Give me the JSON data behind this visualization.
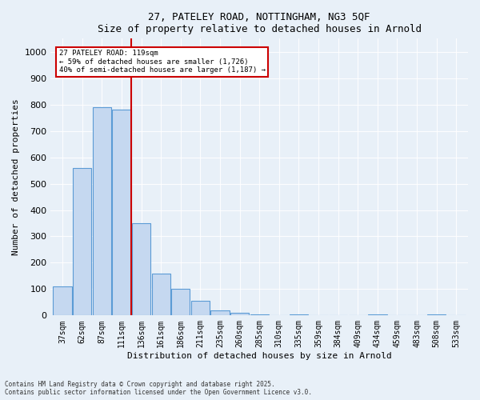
{
  "title1": "27, PATELEY ROAD, NOTTINGHAM, NG3 5QF",
  "title2": "Size of property relative to detached houses in Arnold",
  "xlabel": "Distribution of detached houses by size in Arnold",
  "ylabel": "Number of detached properties",
  "categories": [
    "37sqm",
    "62sqm",
    "87sqm",
    "111sqm",
    "136sqm",
    "161sqm",
    "186sqm",
    "211sqm",
    "235sqm",
    "260sqm",
    "285sqm",
    "310sqm",
    "335sqm",
    "359sqm",
    "384sqm",
    "409sqm",
    "434sqm",
    "459sqm",
    "483sqm",
    "508sqm",
    "533sqm"
  ],
  "values": [
    110,
    560,
    790,
    780,
    350,
    160,
    100,
    55,
    20,
    10,
    5,
    0,
    5,
    0,
    0,
    0,
    5,
    0,
    0,
    5,
    0
  ],
  "bar_color": "#c5d8f0",
  "bar_edge_color": "#5b9bd5",
  "property_line_x": 3.5,
  "property_size": "119sqm",
  "annotation_line1": "27 PATELEY ROAD: 119sqm",
  "annotation_line2": "← 59% of detached houses are smaller (1,726)",
  "annotation_line3": "40% of semi-detached houses are larger (1,187) →",
  "annotation_box_color": "#ffffff",
  "annotation_box_edge_color": "#cc0000",
  "red_line_color": "#cc0000",
  "ylim": [
    0,
    1050
  ],
  "yticks": [
    0,
    100,
    200,
    300,
    400,
    500,
    600,
    700,
    800,
    900,
    1000
  ],
  "footer1": "Contains HM Land Registry data © Crown copyright and database right 2025.",
  "footer2": "Contains public sector information licensed under the Open Government Licence v3.0.",
  "bg_color": "#e8f0f8",
  "plot_bg_color": "#e8f0f8"
}
